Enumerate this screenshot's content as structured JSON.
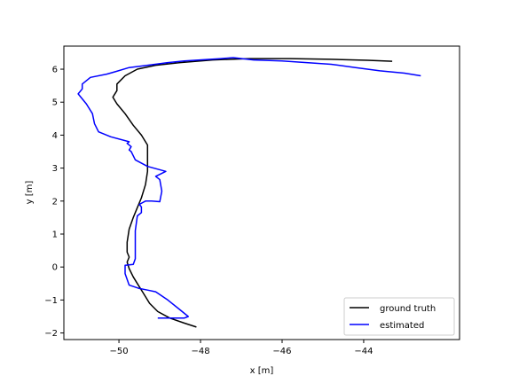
{
  "chart_data": {
    "type": "line",
    "title": "",
    "xlabel": "x [m]",
    "ylabel": "y [m]",
    "xlim": [
      -51.35,
      -41.65
    ],
    "ylim": [
      -2.2,
      6.7
    ],
    "xticks": [
      -50,
      -48,
      -46,
      -44
    ],
    "xtick_labels": [
      "−50",
      "−48",
      "−46",
      "−44"
    ],
    "yticks": [
      -2,
      -1,
      0,
      1,
      2,
      3,
      4,
      5,
      6
    ],
    "ytick_labels": [
      "−2",
      "−1",
      "0",
      "1",
      "2",
      "3",
      "4",
      "5",
      "6"
    ],
    "grid": false,
    "legend_position": "lower-right",
    "series": [
      {
        "name": "ground truth",
        "color": "#000000",
        "points": [
          [
            -48.1,
            -1.82
          ],
          [
            -48.4,
            -1.7
          ],
          [
            -48.75,
            -1.55
          ],
          [
            -49.05,
            -1.35
          ],
          [
            -49.25,
            -1.1
          ],
          [
            -49.4,
            -0.8
          ],
          [
            -49.55,
            -0.5
          ],
          [
            -49.65,
            -0.3
          ],
          [
            -49.75,
            -0.05
          ],
          [
            -49.8,
            0.15
          ],
          [
            -49.75,
            0.3
          ],
          [
            -49.8,
            0.45
          ],
          [
            -49.8,
            0.75
          ],
          [
            -49.75,
            1.15
          ],
          [
            -49.65,
            1.5
          ],
          [
            -49.55,
            1.8
          ],
          [
            -49.45,
            2.1
          ],
          [
            -49.35,
            2.5
          ],
          [
            -49.3,
            2.9
          ],
          [
            -49.3,
            3.3
          ],
          [
            -49.3,
            3.7
          ],
          [
            -49.45,
            4.0
          ],
          [
            -49.65,
            4.3
          ],
          [
            -49.85,
            4.65
          ],
          [
            -50.05,
            4.95
          ],
          [
            -50.15,
            5.15
          ],
          [
            -50.05,
            5.35
          ],
          [
            -50.05,
            5.55
          ],
          [
            -49.85,
            5.8
          ],
          [
            -49.55,
            6.0
          ],
          [
            -49.1,
            6.12
          ],
          [
            -48.5,
            6.2
          ],
          [
            -47.7,
            6.28
          ],
          [
            -46.8,
            6.32
          ],
          [
            -45.8,
            6.32
          ],
          [
            -44.8,
            6.3
          ],
          [
            -43.9,
            6.27
          ],
          [
            -43.3,
            6.24
          ]
        ]
      },
      {
        "name": "estimated",
        "color": "#0000ff",
        "points": [
          [
            -49.05,
            -1.55
          ],
          [
            -48.4,
            -1.55
          ],
          [
            -48.3,
            -1.5
          ],
          [
            -48.5,
            -1.3
          ],
          [
            -48.8,
            -1.0
          ],
          [
            -49.1,
            -0.75
          ],
          [
            -49.3,
            -0.7
          ],
          [
            -49.5,
            -0.65
          ],
          [
            -49.75,
            -0.55
          ],
          [
            -49.85,
            -0.2
          ],
          [
            -49.85,
            0.05
          ],
          [
            -49.65,
            0.08
          ],
          [
            -49.6,
            0.25
          ],
          [
            -49.6,
            0.7
          ],
          [
            -49.6,
            1.1
          ],
          [
            -49.55,
            1.55
          ],
          [
            -49.45,
            1.65
          ],
          [
            -49.45,
            1.82
          ],
          [
            -49.5,
            1.9
          ],
          [
            -49.35,
            2.0
          ],
          [
            -49.2,
            2.0
          ],
          [
            -49.0,
            1.98
          ],
          [
            -48.95,
            2.3
          ],
          [
            -49.0,
            2.65
          ],
          [
            -49.1,
            2.75
          ],
          [
            -48.85,
            2.9
          ],
          [
            -49.3,
            3.05
          ],
          [
            -49.6,
            3.25
          ],
          [
            -49.7,
            3.5
          ],
          [
            -49.75,
            3.55
          ],
          [
            -49.7,
            3.65
          ],
          [
            -49.8,
            3.75
          ],
          [
            -49.75,
            3.8
          ],
          [
            -50.2,
            3.95
          ],
          [
            -50.5,
            4.1
          ],
          [
            -50.6,
            4.35
          ],
          [
            -50.65,
            4.65
          ],
          [
            -50.8,
            4.95
          ],
          [
            -51.0,
            5.25
          ],
          [
            -50.9,
            5.4
          ],
          [
            -50.9,
            5.55
          ],
          [
            -50.7,
            5.75
          ],
          [
            -50.3,
            5.85
          ],
          [
            -50.1,
            5.92
          ],
          [
            -49.75,
            6.05
          ],
          [
            -49.3,
            6.12
          ],
          [
            -48.8,
            6.2
          ],
          [
            -48.4,
            6.25
          ],
          [
            -47.5,
            6.32
          ],
          [
            -47.2,
            6.35
          ],
          [
            -46.7,
            6.28
          ],
          [
            -46.0,
            6.25
          ],
          [
            -45.4,
            6.2
          ],
          [
            -44.8,
            6.15
          ],
          [
            -44.2,
            6.05
          ],
          [
            -43.6,
            5.95
          ],
          [
            -43.0,
            5.88
          ],
          [
            -42.6,
            5.8
          ]
        ]
      }
    ]
  }
}
